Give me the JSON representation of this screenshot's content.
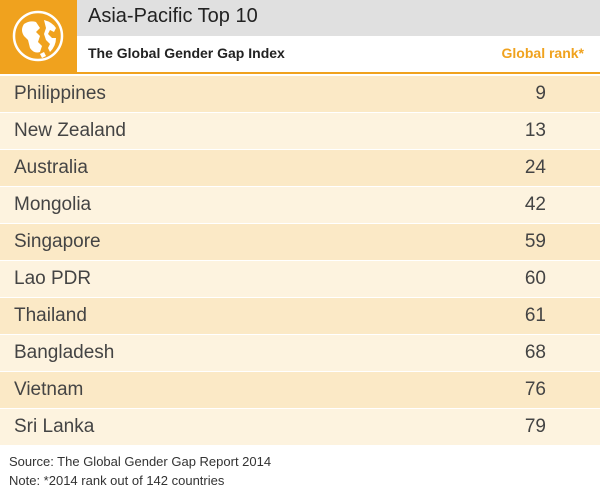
{
  "header": {
    "title": "Asia-Pacific Top 10",
    "subtitle": "The Global Gender Gap Index",
    "rank_column": "Global rank*",
    "icon": "globe-icon"
  },
  "colors": {
    "accent": "#f0a21e",
    "title_band": "#e0e0e0",
    "row_dark": "#fbe9c6",
    "row_light": "#fdf3df"
  },
  "chart_data": {
    "type": "table",
    "columns": [
      "",
      "Global rank*"
    ],
    "rows": [
      {
        "country": "Philippines",
        "rank": "9"
      },
      {
        "country": "New Zealand",
        "rank": "13"
      },
      {
        "country": "Australia",
        "rank": "24"
      },
      {
        "country": "Mongolia",
        "rank": "42"
      },
      {
        "country": "Singapore",
        "rank": "59"
      },
      {
        "country": "Lao PDR",
        "rank": "60"
      },
      {
        "country": "Thailand",
        "rank": "61"
      },
      {
        "country": "Bangladesh",
        "rank": "68"
      },
      {
        "country": "Vietnam",
        "rank": "76"
      },
      {
        "country": "Sri Lanka",
        "rank": "79"
      }
    ]
  },
  "footer": {
    "source": "Source: The Global Gender Gap Report 2014",
    "note": "Note: *2014 rank out of 142 countries"
  }
}
